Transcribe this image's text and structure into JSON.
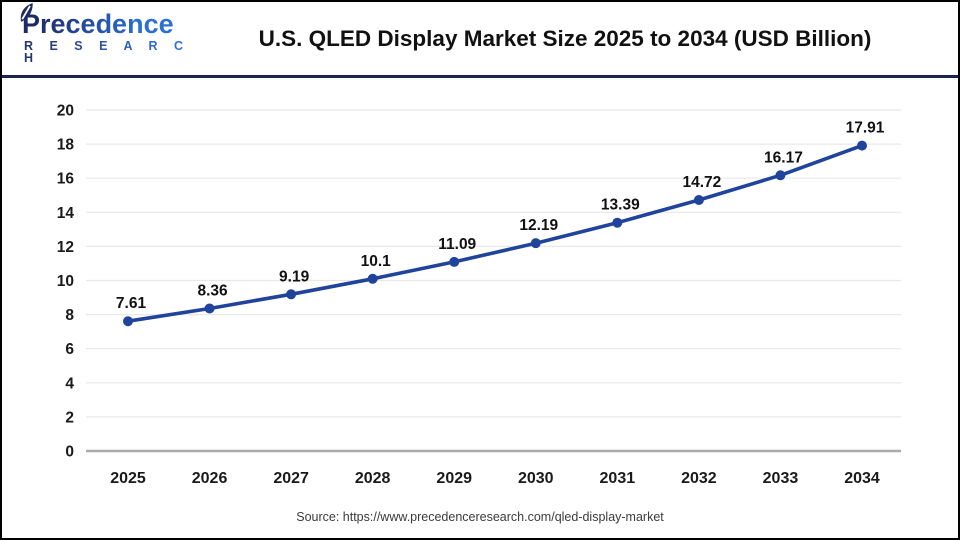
{
  "header": {
    "logo": {
      "line1": "Precedence",
      "line2": "R E S E A R C H"
    },
    "title": "U.S. QLED Display Market Size 2025 to 2034 (USD Billion)"
  },
  "chart_data": {
    "type": "line",
    "title": "U.S. QLED Display Market Size 2025 to 2034 (USD Billion)",
    "categories": [
      "2025",
      "2026",
      "2027",
      "2028",
      "2029",
      "2030",
      "2031",
      "2032",
      "2033",
      "2034"
    ],
    "values": [
      7.61,
      8.36,
      9.19,
      10.1,
      11.09,
      12.19,
      13.39,
      14.72,
      16.17,
      17.91
    ],
    "point_labels": [
      "7.61",
      "8.36",
      "9.19",
      "10.1",
      "11.09",
      "12.19",
      "13.39",
      "14.72",
      "16.17",
      "17.91"
    ],
    "xlabel": "",
    "ylabel": "",
    "ylim": [
      0,
      20
    ],
    "ytick_step": 2,
    "grid": true,
    "legend_position": "none",
    "line_color": "#20449b",
    "marker_color": "#20449b",
    "gridline_color": "#e8e8e8",
    "baseline_color": "#ababab",
    "tick_label_color": "#1a1a1a",
    "data_label_color": "#111111"
  },
  "footer": {
    "source": "Source: https://www.precedenceresearch.com/qled-display-market"
  },
  "colors": {
    "divider_navy": "#1b2350",
    "logo_navy": "#1e2a63",
    "logo_blue": "#2d6fd6",
    "border_black": "#000000"
  }
}
